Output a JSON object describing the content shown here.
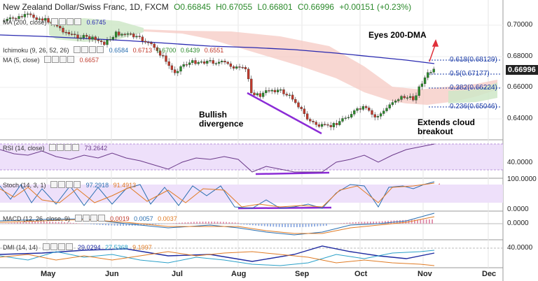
{
  "header": {
    "symbol": "New Zealand Dollar/Swiss Franc, 1D, FXCM",
    "open": "O0.66845",
    "high": "H0.67055",
    "low": "L0.66801",
    "close": "C0.66996",
    "change": "+0.00151 (+0.23%)"
  },
  "indicators": {
    "ma200_label": "MA (200, close)",
    "ma200_value": "0.6745",
    "ichimoku_label": "Ichimoku (9, 26, 52, 26)",
    "ichimoku_values": [
      "0.6584",
      "0.6713",
      "0.6700",
      "0.6439",
      "0.6551"
    ],
    "ma5_label": "MA (5, close)",
    "ma5_value": "0.6657",
    "rsi_label": "RSI (14, close)",
    "rsi_value": "73.2642",
    "stoch_label": "Stoch (14, 3, 1)",
    "stoch_values": [
      "97.2918",
      "91.4913"
    ],
    "macd_label": "MACD (12, 26, close, 9)",
    "macd_values": [
      "0.0019",
      "0.0057",
      "0.0037"
    ],
    "dmi_label": "DMI (14, 14)",
    "dmi_values": [
      "29.0294",
      "27.5368",
      "9.1997"
    ]
  },
  "annotations": {
    "eyes": "Eyes 200-DMA",
    "bullish_1": "Bullish",
    "bullish_2": "divergence",
    "extends_1": "Extends cloud",
    "extends_2": "breakout"
  },
  "fib_levels": [
    {
      "label": "0.618(0.68129)",
      "value": 0.68129
    },
    {
      "label": "0.5(0.67177)",
      "value": 0.67177
    },
    {
      "label": "0.382(0.66224)",
      "value": 0.66224
    },
    {
      "label": "0.236(0.65046)",
      "value": 0.65046
    }
  ],
  "price_axis": [
    "0.70000",
    "0.68000",
    "0.66000",
    "0.64000"
  ],
  "current_price": "0.66996",
  "rsi_axis": "40.0000",
  "stoch_axis": [
    "100.0000",
    "0.0000"
  ],
  "macd_axis": "0.0000",
  "dmi_axis": "40.0000",
  "x_axis": [
    "May",
    "Jun",
    "Jul",
    "Aug",
    "Sep",
    "Oct",
    "Nov",
    "Dec"
  ],
  "colors": {
    "up": "#2b8a2b",
    "down": "#c0392b",
    "ma200": "#2a2ab0",
    "cloud_bear": "#f6c9c3",
    "cloud_bull": "#cfe8c8",
    "divergence": "#8b2bd6",
    "arrow": "#e0303a",
    "panel_band": "#eee0fa"
  }
}
